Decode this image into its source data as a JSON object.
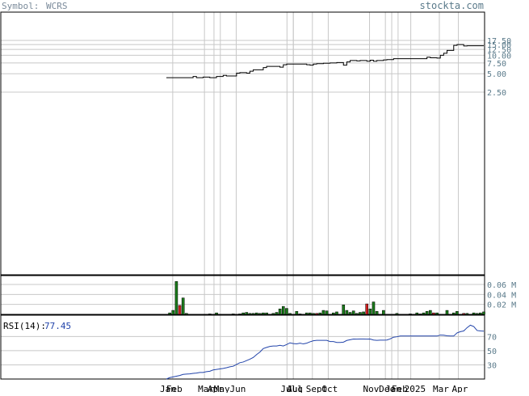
{
  "header": {
    "symbol_label": "Symbol:",
    "symbol": "WCRS",
    "site": "stockta.com"
  },
  "colors": {
    "grid": "#c8c8c8",
    "price_line": "#000000",
    "up_bar": "#1a7a1a",
    "down_bar": "#d02020",
    "neutral_bar": "#1a7a1a",
    "rsi_line": "#2244aa",
    "label_text": "#5a7a8a",
    "site_text": "#5a7a8a",
    "header_text": "#7a8a9a"
  },
  "chart_data": [
    {
      "type": "line",
      "panel": "price",
      "scale": "log",
      "y_ticks": [
        2.5,
        5.0,
        7.5,
        10.0,
        12.5,
        15.0,
        17.5
      ],
      "y_tick_labels": [
        "2.50",
        "5.00",
        "7.50",
        "10.00",
        "12.50",
        "15.00",
        "17.50"
      ],
      "x_month_labels": [
        "Jan",
        "Feb",
        "Mar",
        "Apr",
        "May",
        "Jun",
        "Jul",
        "Jul",
        "Aug",
        "Sept",
        "Oct",
        "Nov",
        "Dec",
        "Jan",
        "Feb",
        "2025",
        "Mar",
        "Apr"
      ],
      "x_month_positions": [
        0.0,
        0.02,
        0.12,
        0.15,
        0.17,
        0.22,
        0.38,
        0.4,
        0.4,
        0.46,
        0.51,
        0.64,
        0.69,
        0.71,
        0.73,
        0.77,
        0.86,
        0.92
      ],
      "series": [
        {
          "values": [
            4.3,
            4.3,
            4.3,
            4.3,
            4.3,
            4.3,
            4.3,
            4.3,
            4.5,
            4.3,
            4.3,
            4.4,
            4.4,
            4.3,
            4.3,
            4.5,
            4.5,
            4.7,
            4.6,
            4.6,
            4.6,
            5.1,
            5.2,
            5.2,
            5.1,
            5.5,
            5.8,
            5.8,
            5.8,
            6.3,
            6.6,
            6.6,
            6.6,
            6.6,
            6.4,
            7.0,
            7.2,
            7.2,
            7.2,
            7.2,
            7.2,
            7.2,
            7.0,
            6.9,
            7.2,
            7.3,
            7.3,
            7.4,
            7.4,
            7.5,
            7.5,
            7.6,
            7.6,
            6.9,
            7.8,
            8.2,
            8.2,
            8.1,
            8.2,
            8.2,
            8.0,
            8.3,
            8.0,
            8.2,
            8.2,
            8.4,
            8.5,
            8.5,
            8.8,
            8.8,
            8.8,
            8.8,
            8.8,
            8.8,
            8.8,
            8.8,
            8.8,
            8.8,
            9.3,
            9.1,
            9.1,
            9.0,
            10.0,
            10.8,
            12.0,
            12.0,
            14.5,
            15.0,
            15.0,
            14.2,
            14.3,
            14.3,
            14.3,
            14.3,
            14.3,
            14.3
          ]
        }
      ]
    },
    {
      "type": "bar",
      "panel": "volume",
      "y_ticks": [
        0.02,
        0.04,
        0.06
      ],
      "y_tick_labels": [
        "0.02 M",
        "0.04 M",
        "0.06 M"
      ],
      "values": [
        0.0,
        0.003,
        0.008,
        0.066,
        0.018,
        0.033,
        0.002,
        0.0,
        0.0,
        0.0,
        0.0,
        0.0,
        0.0,
        0.001,
        0.0,
        0.003,
        0.0,
        0.0,
        0.0,
        0.0,
        0.001,
        0.0,
        0.001,
        0.003,
        0.004,
        0.002,
        0.002,
        0.003,
        0.002,
        0.003,
        0.003,
        0.0,
        0.002,
        0.004,
        0.011,
        0.016,
        0.012,
        0.002,
        0.0,
        0.006,
        0.001,
        0.0,
        0.003,
        0.003,
        0.002,
        0.002,
        0.003,
        0.008,
        0.007,
        0.0,
        0.003,
        0.005,
        0.0,
        0.019,
        0.008,
        0.004,
        0.007,
        0.002,
        0.004,
        0.005,
        0.021,
        0.011,
        0.025,
        0.006,
        0.0,
        0.008,
        0.0,
        0.0,
        0.0,
        0.002,
        0.0,
        0.0,
        0.0,
        0.001,
        0.0,
        0.003,
        0.001,
        0.003,
        0.006,
        0.008,
        0.003,
        0.003,
        0.0,
        0.0,
        0.008,
        0.0,
        0.003,
        0.006,
        0.0,
        0.002,
        0.002,
        0.0,
        0.003,
        0.002,
        0.003,
        0.005
      ],
      "directions": [
        "u",
        "u",
        "u",
        "u",
        "d",
        "u",
        "u",
        "u",
        "u",
        "u",
        "u",
        "u",
        "u",
        "u",
        "u",
        "u",
        "u",
        "u",
        "u",
        "u",
        "u",
        "u",
        "u",
        "u",
        "u",
        "u",
        "u",
        "u",
        "u",
        "u",
        "u",
        "u",
        "u",
        "u",
        "u",
        "u",
        "u",
        "u",
        "u",
        "u",
        "u",
        "u",
        "u",
        "u",
        "u",
        "d",
        "u",
        "u",
        "u",
        "u",
        "u",
        "u",
        "u",
        "u",
        "u",
        "u",
        "u",
        "u",
        "u",
        "u",
        "d",
        "u",
        "u",
        "u",
        "u",
        "u",
        "u",
        "u",
        "u",
        "u",
        "u",
        "u",
        "u",
        "u",
        "u",
        "u",
        "u",
        "u",
        "u",
        "u",
        "d",
        "u",
        "u",
        "u",
        "u",
        "u",
        "u",
        "u",
        "u",
        "d",
        "u",
        "u",
        "u",
        "u",
        "u",
        "u"
      ]
    },
    {
      "type": "line",
      "panel": "rsi",
      "label": "RSI(14):",
      "current_value": "77.45",
      "y_ticks": [
        30,
        50,
        70
      ],
      "y_tick_labels": [
        "30",
        "50",
        "70"
      ],
      "ylim": [
        10,
        100
      ],
      "series": [
        {
          "values": [
            10.0,
            12.0,
            13.0,
            14.0,
            15.0,
            16.5,
            17.0,
            17.2,
            18.0,
            18.4,
            19.2,
            19.3,
            20.4,
            21.0,
            22.8,
            23.5,
            24.3,
            25.0,
            26.0,
            27.2,
            28.0,
            30.6,
            33.0,
            34.0,
            36.0,
            38.0,
            40.4,
            44.5,
            48.0,
            53.0,
            54.6,
            56.0,
            56.6,
            56.6,
            57.6,
            56.6,
            58.6,
            61.0,
            60.0,
            59.6,
            60.6,
            59.5,
            60.5,
            62.5,
            64.0,
            64.5,
            64.5,
            64.5,
            64.5,
            62.8,
            62.8,
            61.6,
            61.6,
            62.0,
            64.4,
            65.4,
            66.4,
            66.2,
            66.4,
            66.4,
            66.2,
            66.4,
            65.0,
            64.6,
            64.8,
            64.8,
            65.0,
            66.6,
            69.0,
            69.6,
            70.6,
            70.6,
            70.6,
            70.6,
            70.6,
            70.6,
            70.6,
            70.6,
            70.6,
            70.6,
            70.6,
            70.6,
            72.0,
            71.8,
            70.9,
            70.6,
            70.6,
            75.0,
            76.8,
            77.8,
            82.4,
            85.9,
            84.0,
            78.4,
            77.8,
            77.45
          ]
        }
      ]
    }
  ]
}
